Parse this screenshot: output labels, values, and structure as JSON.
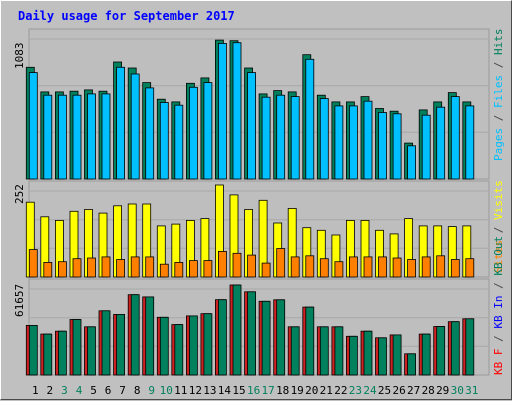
{
  "chart_data": [
    {
      "type": "bar",
      "title": "Daily usage for September 2017",
      "categories": [
        "1",
        "2",
        "3",
        "4",
        "5",
        "6",
        "7",
        "8",
        "9",
        "10",
        "11",
        "12",
        "13",
        "14",
        "15",
        "16",
        "17",
        "18",
        "19",
        "20",
        "21",
        "22",
        "23",
        "24",
        "25",
        "26",
        "27",
        "28",
        "29",
        "30",
        "31"
      ],
      "weekend": [
        false,
        false,
        true,
        true,
        false,
        false,
        false,
        false,
        true,
        true,
        false,
        false,
        false,
        false,
        false,
        true,
        true,
        false,
        false,
        false,
        false,
        false,
        true,
        true,
        false,
        false,
        false,
        false,
        false,
        true,
        true
      ],
      "ymax_label": "1083",
      "ylim": [
        0,
        1083
      ],
      "series": [
        {
          "name": "Hits",
          "color": "#00805C",
          "values": [
            840,
            655,
            655,
            660,
            670,
            660,
            880,
            835,
            725,
            600,
            580,
            720,
            760,
            1045,
            1040,
            835,
            640,
            665,
            655,
            935,
            630,
            580,
            580,
            620,
            530,
            510,
            270,
            520,
            580,
            650,
            580
          ]
        },
        {
          "name": "Files",
          "color": "#00C0FF",
          "values": [
            800,
            630,
            630,
            630,
            640,
            640,
            840,
            790,
            685,
            575,
            555,
            690,
            725,
            1020,
            1025,
            800,
            615,
            630,
            620,
            900,
            605,
            550,
            550,
            585,
            500,
            490,
            250,
            480,
            540,
            620,
            550
          ]
        }
      ],
      "right_labels": [
        {
          "text": "Pages",
          "color": "#00C0FF"
        },
        {
          "text": " / ",
          "color": "#4A4A4A"
        },
        {
          "text": "Files",
          "color": "#00C0FF"
        },
        {
          "text": " / ",
          "color": "#4A4A4A"
        },
        {
          "text": "Hits",
          "color": "#00805C"
        }
      ]
    },
    {
      "type": "bar",
      "ymax_label": "252",
      "ylim": [
        0,
        252
      ],
      "series": [
        {
          "name": "Visits",
          "color": "#FFFF00",
          "values": [
            205,
            165,
            155,
            180,
            185,
            175,
            195,
            200,
            200,
            140,
            145,
            155,
            160,
            252,
            225,
            185,
            210,
            148,
            188,
            135,
            128,
            115,
            155,
            155,
            128,
            118,
            160,
            140,
            140,
            138,
            140
          ]
        },
        {
          "name": "Sites",
          "color": "#FF8000",
          "values": [
            75,
            40,
            42,
            50,
            52,
            55,
            48,
            55,
            55,
            35,
            40,
            45,
            45,
            70,
            65,
            60,
            38,
            78,
            55,
            58,
            50,
            42,
            55,
            55,
            55,
            52,
            48,
            55,
            58,
            48,
            50
          ]
        }
      ],
      "right_labels": [
        {
          "text": "Sites",
          "color": "#FF8000"
        },
        {
          "text": " / ",
          "color": "#4A4A4A"
        },
        {
          "text": "Visits",
          "color": "#FFFF00"
        }
      ]
    },
    {
      "type": "bar",
      "ymax_label": "61657",
      "ylim": [
        0,
        61657
      ],
      "series": [
        {
          "name": "KB F",
          "color": "#FF0000",
          "values": [
            0,
            0,
            0,
            0,
            0,
            0,
            0,
            0,
            0,
            0,
            0,
            0,
            0,
            0,
            0,
            0,
            0,
            0,
            0,
            0,
            0,
            0,
            0,
            0,
            0,
            0,
            0,
            0,
            0,
            0,
            0
          ]
        },
        {
          "name": "KB In",
          "color": "#0000FF",
          "values": [
            0,
            0,
            0,
            0,
            0,
            0,
            0,
            0,
            0,
            0,
            0,
            0,
            0,
            0,
            0,
            0,
            0,
            0,
            0,
            0,
            0,
            0,
            0,
            0,
            0,
            0,
            0,
            0,
            0,
            0,
            0
          ]
        },
        {
          "name": "KB Out",
          "color": "#00805C",
          "values": [
            34000,
            28000,
            30000,
            38000,
            33000,
            44000,
            41500,
            55000,
            53500,
            39500,
            34500,
            40500,
            42000,
            51600,
            61657,
            57000,
            50500,
            51500,
            33000,
            46500,
            33000,
            33000,
            26500,
            30000,
            25500,
            27500,
            14500,
            28000,
            33200,
            36500,
            38500
          ]
        }
      ],
      "right_labels": [
        {
          "text": "KB F",
          "color": "#FF0000"
        },
        {
          "text": " / ",
          "color": "#4A4A4A"
        },
        {
          "text": "KB In",
          "color": "#0000FF"
        },
        {
          "text": " / ",
          "color": "#4A4A4A"
        },
        {
          "text": "KB Out",
          "color": "#00805C"
        }
      ]
    }
  ],
  "title_color": "#0000FF",
  "ymax_color": "#000000",
  "day_label_weekday_color": "#000000",
  "day_label_weekend_color": "#00805C"
}
